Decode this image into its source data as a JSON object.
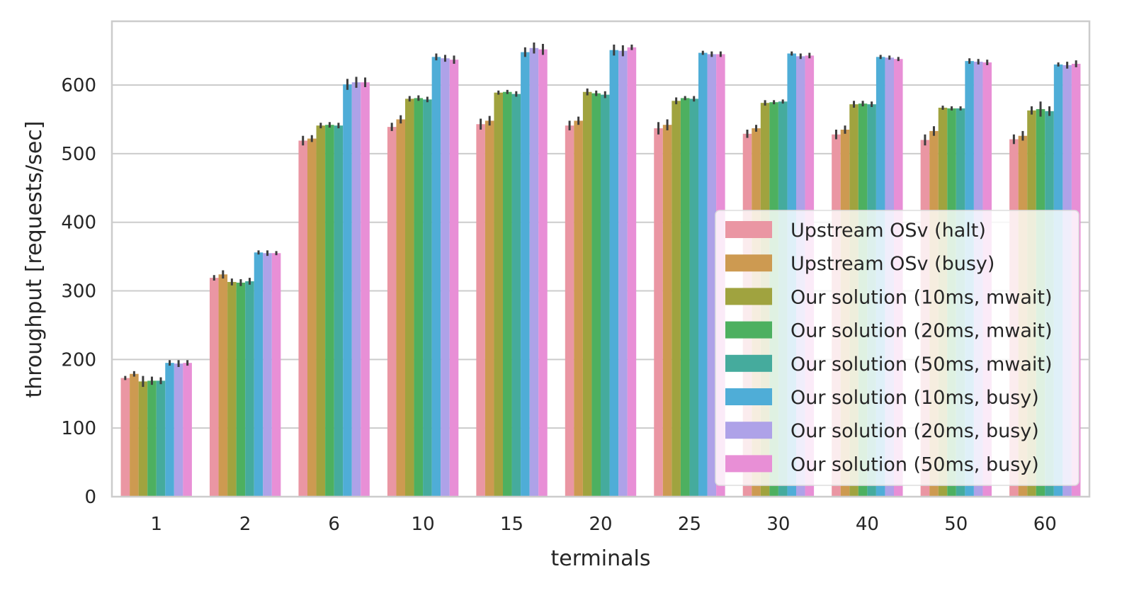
{
  "chart_data": {
    "type": "bar",
    "xlabel": "terminals",
    "ylabel": "throughput [requests/sec]",
    "ylim": [
      0,
      693
    ],
    "yticks": [
      0,
      100,
      200,
      300,
      400,
      500,
      600
    ],
    "grid": "horizontal",
    "legend_position": "lower-right",
    "categories": [
      "1",
      "2",
      "6",
      "10",
      "15",
      "20",
      "25",
      "30",
      "40",
      "50",
      "60"
    ],
    "series": [
      {
        "name": "Upstream OSv (halt)",
        "color": "#ea96a3",
        "values": [
          173,
          319,
          519,
          539,
          543,
          541,
          537,
          529,
          528,
          520,
          521
        ]
      },
      {
        "name": "Upstream OSv (busy)",
        "color": "#cd9a51",
        "values": [
          179,
          324,
          522,
          550,
          548,
          548,
          542,
          537,
          535,
          533,
          526
        ]
      },
      {
        "name": "Our solution (10ms, mwait)",
        "color": "#a0a33f",
        "values": [
          168,
          313,
          541,
          580,
          589,
          590,
          577,
          574,
          572,
          567,
          563
        ]
      },
      {
        "name": "Our solution (20ms, mwait)",
        "color": "#4db060",
        "values": [
          169,
          312,
          542,
          581,
          590,
          588,
          581,
          575,
          573,
          566,
          565
        ]
      },
      {
        "name": "Our solution (50ms, mwait)",
        "color": "#45ab9d",
        "values": [
          169,
          314,
          541,
          579,
          587,
          586,
          580,
          576,
          572,
          566,
          562
        ]
      },
      {
        "name": "Our solution (10ms, busy)",
        "color": "#4fadd7",
        "values": [
          195,
          356,
          601,
          641,
          648,
          651,
          647,
          646,
          641,
          635,
          630
        ]
      },
      {
        "name": "Our solution (20ms, busy)",
        "color": "#aea2e8",
        "values": [
          194,
          355,
          604,
          639,
          654,
          650,
          645,
          642,
          640,
          634,
          629
        ]
      },
      {
        "name": "Our solution (50ms, busy)",
        "color": "#e88fd6",
        "values": [
          195,
          355,
          604,
          637,
          652,
          655,
          645,
          643,
          638,
          633,
          631
        ]
      }
    ],
    "errors": [
      [
        3,
        4,
        7,
        6,
        8,
        7,
        9,
        6,
        7,
        8,
        7
      ],
      [
        4,
        6,
        5,
        6,
        7,
        6,
        8,
        5,
        6,
        7,
        7
      ],
      [
        8,
        5,
        4,
        4,
        3,
        5,
        5,
        4,
        5,
        3,
        6
      ],
      [
        6,
        5,
        4,
        4,
        3,
        4,
        3,
        3,
        4,
        3,
        11
      ],
      [
        5,
        5,
        4,
        4,
        4,
        5,
        4,
        3,
        4,
        3,
        7
      ],
      [
        4,
        3,
        8,
        5,
        7,
        8,
        3,
        3,
        3,
        4,
        3
      ],
      [
        5,
        4,
        8,
        5,
        8,
        8,
        4,
        4,
        3,
        4,
        5
      ],
      [
        4,
        3,
        7,
        6,
        8,
        4,
        4,
        4,
        3,
        4,
        5
      ]
    ]
  }
}
